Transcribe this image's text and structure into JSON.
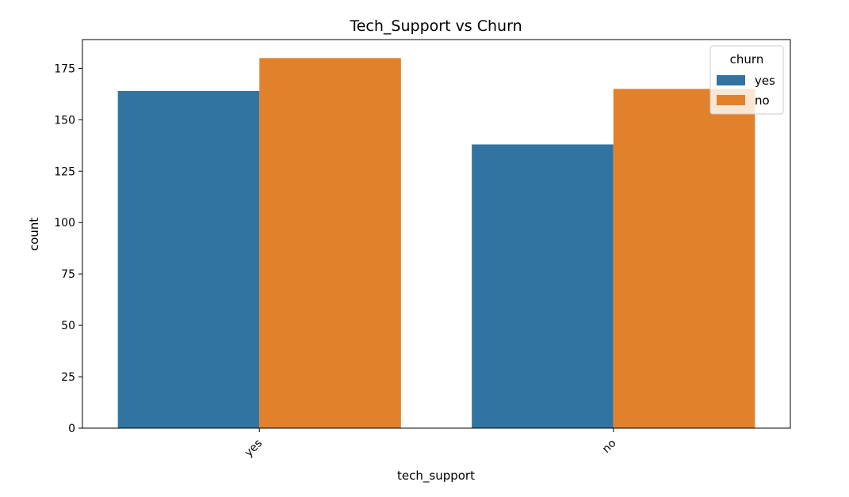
{
  "chart_data": {
    "type": "bar",
    "title": "Tech_Support vs Churn",
    "xlabel": "tech_support",
    "ylabel": "count",
    "categories": [
      "yes",
      "no"
    ],
    "series": [
      {
        "name": "yes",
        "values": [
          164,
          138
        ],
        "color": "#3274a1"
      },
      {
        "name": "no",
        "values": [
          180,
          165
        ],
        "color": "#e1812c"
      }
    ],
    "ylim": [
      0,
      189
    ],
    "yticks": [
      0,
      25,
      50,
      75,
      100,
      125,
      150,
      175
    ],
    "legend": {
      "title": "churn",
      "placement": "top-right"
    },
    "grid": false
  }
}
